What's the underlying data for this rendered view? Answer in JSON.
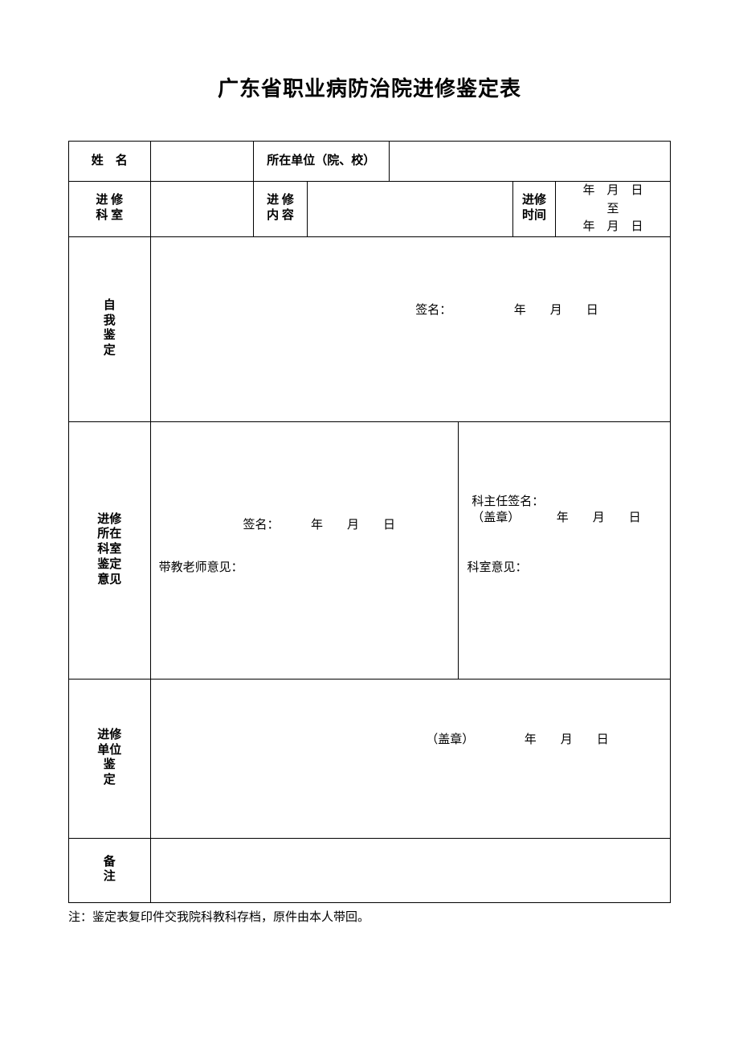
{
  "title": "广东省职业病防治院进修鉴定表",
  "labels": {
    "name": "姓　名",
    "unit": "所在单位（院、校）",
    "dept": "进 修<br>科 室",
    "content": "进 修<br>内 容",
    "period": "进修<br>时间",
    "self": "自<br>我<br>鉴<br>定",
    "deptOpinion": "进修<br>所在<br>科室<br>鉴定<br>意见",
    "unitOpinion": "进修<br>单位<br>鉴<br>定",
    "notes": "备<br>注"
  },
  "dateRange": {
    "line1": "年　月　日",
    "mid": "至",
    "line2": "年　月　日"
  },
  "sign": {
    "sig": "签名：",
    "ymd": "年　　月　　日",
    "teacher": "带教老师意见：",
    "deptHeadOpinion": "科室意见：",
    "deptHeadSign": "科主任签名：",
    "seal": "（盖章）"
  },
  "footnote": "注：鉴定表复印件交我院科教科存档，原件由本人带回。"
}
